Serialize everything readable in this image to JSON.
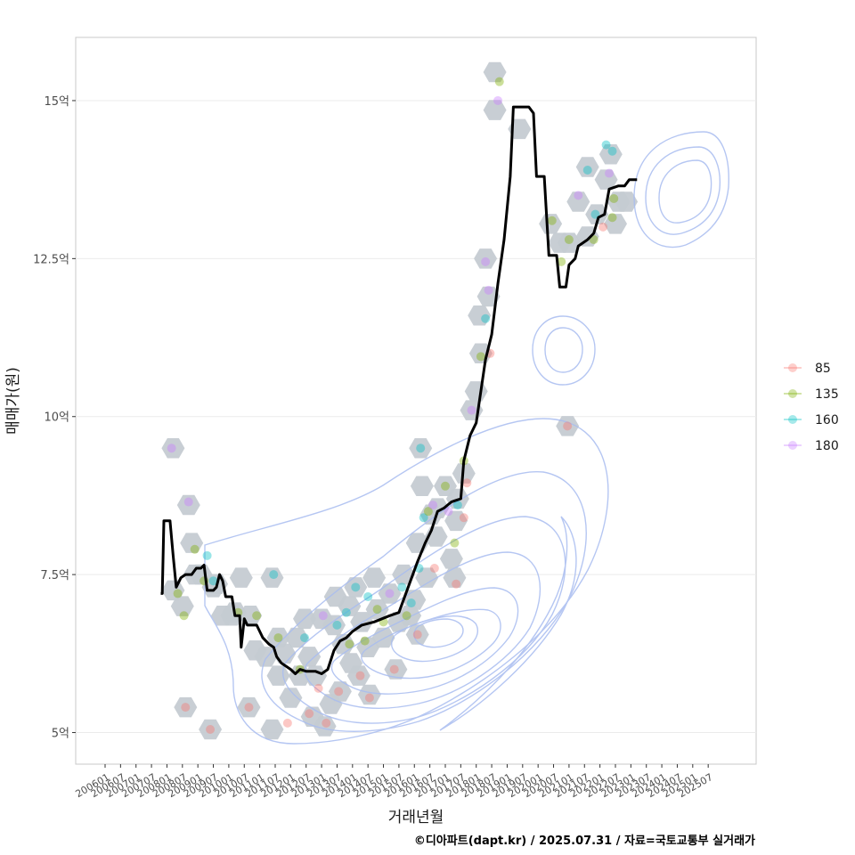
{
  "chart_data": {
    "type": "scatter",
    "xlabel": "거래년월",
    "ylabel": "매매가(원)",
    "ylim": [
      4.5,
      16
    ],
    "y_ticks": [
      {
        "value": 5,
        "label": "5억"
      },
      {
        "value": 7.5,
        "label": "7.5억"
      },
      {
        "value": 10,
        "label": "10억"
      },
      {
        "value": 12.5,
        "label": "12.5억"
      },
      {
        "value": 15,
        "label": "15억"
      }
    ],
    "x_range": [
      -0.95,
      21.05
    ],
    "x_ticks": [
      "200601",
      "200607",
      "200701",
      "200707",
      "200801",
      "200807",
      "200901",
      "200907",
      "201001",
      "201007",
      "201101",
      "201107",
      "201201",
      "201207",
      "201301",
      "201307",
      "201401",
      "201407",
      "201501",
      "201507",
      "201601",
      "201607",
      "201701",
      "201707",
      "201801",
      "201807",
      "201901",
      "201907",
      "202001",
      "202007",
      "202101",
      "202107",
      "202201",
      "202207",
      "202301",
      "202307",
      "202401",
      "202407",
      "202501",
      "202507"
    ],
    "grid": true,
    "legend_position": "right",
    "legend": [
      {
        "label": "85",
        "color": "#F8766D"
      },
      {
        "label": "135",
        "color": "#7CAE00"
      },
      {
        "label": "160",
        "color": "#00BFC4"
      },
      {
        "label": "180",
        "color": "#C77CFF"
      }
    ],
    "trend_line": {
      "color": "#000000",
      "points": [
        [
          1.8,
          7.2
        ],
        [
          1.85,
          7.2
        ],
        [
          1.9,
          8.35
        ],
        [
          2.0,
          8.35
        ],
        [
          2.1,
          8.35
        ],
        [
          2.2,
          7.8
        ],
        [
          2.3,
          7.3
        ],
        [
          2.45,
          7.45
        ],
        [
          2.6,
          7.5
        ],
        [
          2.8,
          7.5
        ],
        [
          2.95,
          7.6
        ],
        [
          3.1,
          7.6
        ],
        [
          3.2,
          7.65
        ],
        [
          3.3,
          7.25
        ],
        [
          3.5,
          7.25
        ],
        [
          3.6,
          7.3
        ],
        [
          3.7,
          7.5
        ],
        [
          3.8,
          7.4
        ],
        [
          3.9,
          7.15
        ],
        [
          4.1,
          7.15
        ],
        [
          4.2,
          6.85
        ],
        [
          4.35,
          6.85
        ],
        [
          4.4,
          6.35
        ],
        [
          4.5,
          6.8
        ],
        [
          4.6,
          6.7
        ],
        [
          4.9,
          6.7
        ],
        [
          5.1,
          6.5
        ],
        [
          5.3,
          6.4
        ],
        [
          5.45,
          6.35
        ],
        [
          5.55,
          6.2
        ],
        [
          5.7,
          6.1
        ],
        [
          5.85,
          6.05
        ],
        [
          6.0,
          6.0
        ],
        [
          6.15,
          5.93
        ],
        [
          6.3,
          6.0
        ],
        [
          6.5,
          5.97
        ],
        [
          6.8,
          5.97
        ],
        [
          7.0,
          5.93
        ],
        [
          7.2,
          6.0
        ],
        [
          7.4,
          6.3
        ],
        [
          7.6,
          6.45
        ],
        [
          7.8,
          6.5
        ],
        [
          8.0,
          6.6
        ],
        [
          8.3,
          6.7
        ],
        [
          8.7,
          6.75
        ],
        [
          9.2,
          6.85
        ],
        [
          9.5,
          6.9
        ],
        [
          9.8,
          7.3
        ],
        [
          10.1,
          7.7
        ],
        [
          10.35,
          8.0
        ],
        [
          10.55,
          8.2
        ],
        [
          10.75,
          8.5
        ],
        [
          10.95,
          8.55
        ],
        [
          11.2,
          8.65
        ],
        [
          11.5,
          8.7
        ],
        [
          11.6,
          9.3
        ],
        [
          11.8,
          9.7
        ],
        [
          12.0,
          9.9
        ],
        [
          12.3,
          10.9
        ],
        [
          12.5,
          11.3
        ],
        [
          12.7,
          12.1
        ],
        [
          12.9,
          12.8
        ],
        [
          13.1,
          13.8
        ],
        [
          13.2,
          14.9
        ],
        [
          13.5,
          14.9
        ],
        [
          13.7,
          14.9
        ],
        [
          13.85,
          14.8
        ],
        [
          13.95,
          13.8
        ],
        [
          14.2,
          13.8
        ],
        [
          14.35,
          12.55
        ],
        [
          14.6,
          12.55
        ],
        [
          14.7,
          12.05
        ],
        [
          14.9,
          12.05
        ],
        [
          15.0,
          12.4
        ],
        [
          15.2,
          12.5
        ],
        [
          15.3,
          12.7
        ],
        [
          15.6,
          12.8
        ],
        [
          15.8,
          12.9
        ],
        [
          15.95,
          13.15
        ],
        [
          16.15,
          13.2
        ],
        [
          16.3,
          13.6
        ],
        [
          16.6,
          13.65
        ],
        [
          16.8,
          13.65
        ],
        [
          16.95,
          13.75
        ],
        [
          17.2,
          13.75
        ]
      ]
    },
    "hexbins": [
      [
        2.2,
        9.5
      ],
      [
        2.2,
        7.25
      ],
      [
        2.5,
        7.0
      ],
      [
        2.6,
        5.4
      ],
      [
        2.7,
        8.6
      ],
      [
        2.8,
        8.0
      ],
      [
        2.9,
        7.5
      ],
      [
        3.1,
        7.5
      ],
      [
        3.4,
        5.05
      ],
      [
        3.5,
        7.3
      ],
      [
        3.6,
        7.35
      ],
      [
        3.8,
        6.85
      ],
      [
        4.1,
        6.85
      ],
      [
        4.2,
        6.9
      ],
      [
        4.4,
        7.45
      ],
      [
        4.65,
        5.4
      ],
      [
        4.7,
        6.85
      ],
      [
        4.85,
        6.3
      ],
      [
        5.2,
        6.2
      ],
      [
        5.4,
        7.45
      ],
      [
        5.4,
        5.05
      ],
      [
        5.6,
        6.5
      ],
      [
        5.6,
        5.9
      ],
      [
        5.8,
        6.25
      ],
      [
        6.0,
        5.55
      ],
      [
        6.2,
        6.5
      ],
      [
        6.3,
        5.9
      ],
      [
        6.45,
        6.8
      ],
      [
        6.6,
        6.2
      ],
      [
        6.7,
        5.25
      ],
      [
        6.8,
        5.9
      ],
      [
        7.0,
        6.8
      ],
      [
        7.1,
        5.1
      ],
      [
        7.3,
        5.45
      ],
      [
        7.4,
        6.7
      ],
      [
        7.45,
        7.15
      ],
      [
        7.6,
        5.65
      ],
      [
        7.7,
        6.4
      ],
      [
        7.9,
        7.0
      ],
      [
        7.95,
        6.1
      ],
      [
        8.1,
        7.3
      ],
      [
        8.2,
        5.9
      ],
      [
        8.3,
        6.75
      ],
      [
        8.5,
        6.35
      ],
      [
        8.55,
        5.6
      ],
      [
        8.7,
        7.45
      ],
      [
        8.8,
        6.95
      ],
      [
        9.0,
        6.5
      ],
      [
        9.2,
        7.2
      ],
      [
        9.4,
        6.0
      ],
      [
        9.5,
        6.75
      ],
      [
        9.65,
        7.5
      ],
      [
        9.85,
        6.85
      ],
      [
        10.0,
        7.1
      ],
      [
        10.1,
        6.55
      ],
      [
        10.1,
        8.0
      ],
      [
        10.2,
        9.5
      ],
      [
        10.25,
        8.9
      ],
      [
        10.4,
        7.45
      ],
      [
        10.55,
        8.45
      ],
      [
        10.7,
        8.1
      ],
      [
        10.75,
        8.55
      ],
      [
        11.0,
        8.9
      ],
      [
        11.2,
        7.75
      ],
      [
        11.3,
        7.45
      ],
      [
        11.35,
        8.35
      ],
      [
        11.4,
        8.7
      ],
      [
        11.6,
        9.1
      ],
      [
        11.85,
        10.1
      ],
      [
        12.0,
        10.4
      ],
      [
        12.1,
        11.6
      ],
      [
        12.15,
        11.0
      ],
      [
        12.3,
        12.5
      ],
      [
        12.4,
        11.9
      ],
      [
        12.6,
        15.45
      ],
      [
        12.6,
        14.85
      ],
      [
        13.4,
        14.55
      ],
      [
        14.4,
        13.05
      ],
      [
        14.7,
        12.75
      ],
      [
        14.95,
        9.85
      ],
      [
        15.0,
        12.75
      ],
      [
        15.3,
        13.4
      ],
      [
        15.6,
        13.95
      ],
      [
        15.6,
        12.85
      ],
      [
        15.9,
        13.2
      ],
      [
        16.2,
        13.75
      ],
      [
        16.35,
        14.15
      ],
      [
        16.5,
        13.05
      ],
      [
        16.6,
        13.4
      ],
      [
        16.85,
        13.4
      ]
    ],
    "points": [
      {
        "x": 2.15,
        "y": 9.5,
        "group": "180"
      },
      {
        "x": 2.35,
        "y": 7.2,
        "group": "135"
      },
      {
        "x": 2.55,
        "y": 6.85,
        "group": "135"
      },
      {
        "x": 2.6,
        "y": 5.4,
        "group": "85"
      },
      {
        "x": 2.7,
        "y": 8.65,
        "group": "180"
      },
      {
        "x": 2.9,
        "y": 7.9,
        "group": "135"
      },
      {
        "x": 3.2,
        "y": 7.4,
        "group": "135"
      },
      {
        "x": 3.3,
        "y": 7.8,
        "group": "160"
      },
      {
        "x": 3.4,
        "y": 5.05,
        "group": "85"
      },
      {
        "x": 3.5,
        "y": 7.4,
        "group": "160"
      },
      {
        "x": 4.3,
        "y": 6.9,
        "group": "135"
      },
      {
        "x": 4.65,
        "y": 5.4,
        "group": "85"
      },
      {
        "x": 4.9,
        "y": 6.85,
        "group": "135"
      },
      {
        "x": 5.45,
        "y": 7.5,
        "group": "160"
      },
      {
        "x": 5.6,
        "y": 6.5,
        "group": "135"
      },
      {
        "x": 5.9,
        "y": 5.15,
        "group": "85"
      },
      {
        "x": 6.3,
        "y": 6.0,
        "group": "135"
      },
      {
        "x": 6.45,
        "y": 6.5,
        "group": "160"
      },
      {
        "x": 6.6,
        "y": 5.3,
        "group": "85"
      },
      {
        "x": 6.9,
        "y": 5.7,
        "group": "85"
      },
      {
        "x": 7.05,
        "y": 6.85,
        "group": "180"
      },
      {
        "x": 7.15,
        "y": 5.15,
        "group": "85"
      },
      {
        "x": 7.5,
        "y": 6.7,
        "group": "160"
      },
      {
        "x": 7.55,
        "y": 5.65,
        "group": "85"
      },
      {
        "x": 7.8,
        "y": 6.9,
        "group": "160"
      },
      {
        "x": 7.9,
        "y": 6.4,
        "group": "135"
      },
      {
        "x": 8.1,
        "y": 7.3,
        "group": "160"
      },
      {
        "x": 8.25,
        "y": 5.9,
        "group": "85"
      },
      {
        "x": 8.4,
        "y": 6.45,
        "group": "135"
      },
      {
        "x": 8.55,
        "y": 5.55,
        "group": "85"
      },
      {
        "x": 8.5,
        "y": 7.15,
        "group": "160"
      },
      {
        "x": 8.8,
        "y": 6.95,
        "group": "135"
      },
      {
        "x": 9.0,
        "y": 6.75,
        "group": "135"
      },
      {
        "x": 9.2,
        "y": 7.2,
        "group": "180"
      },
      {
        "x": 9.35,
        "y": 6.0,
        "group": "85"
      },
      {
        "x": 9.6,
        "y": 7.3,
        "group": "160"
      },
      {
        "x": 9.75,
        "y": 6.85,
        "group": "135"
      },
      {
        "x": 9.9,
        "y": 7.05,
        "group": "160"
      },
      {
        "x": 10.1,
        "y": 6.55,
        "group": "85"
      },
      {
        "x": 10.15,
        "y": 7.6,
        "group": "160"
      },
      {
        "x": 10.2,
        "y": 9.5,
        "group": "160"
      },
      {
        "x": 10.3,
        "y": 8.4,
        "group": "160"
      },
      {
        "x": 10.45,
        "y": 8.5,
        "group": "135"
      },
      {
        "x": 10.6,
        "y": 8.6,
        "group": "180"
      },
      {
        "x": 10.65,
        "y": 7.6,
        "group": "85"
      },
      {
        "x": 11.0,
        "y": 8.9,
        "group": "135"
      },
      {
        "x": 11.1,
        "y": 8.5,
        "group": "180"
      },
      {
        "x": 11.3,
        "y": 8.0,
        "group": "135"
      },
      {
        "x": 11.35,
        "y": 7.35,
        "group": "85"
      },
      {
        "x": 11.4,
        "y": 8.6,
        "group": "160"
      },
      {
        "x": 11.6,
        "y": 9.3,
        "group": "135"
      },
      {
        "x": 11.6,
        "y": 8.4,
        "group": "85"
      },
      {
        "x": 11.7,
        "y": 8.95,
        "group": "85"
      },
      {
        "x": 11.85,
        "y": 10.1,
        "group": "180"
      },
      {
        "x": 12.15,
        "y": 10.95,
        "group": "135"
      },
      {
        "x": 12.3,
        "y": 11.55,
        "group": "160"
      },
      {
        "x": 12.3,
        "y": 12.45,
        "group": "180"
      },
      {
        "x": 12.4,
        "y": 12.0,
        "group": "180"
      },
      {
        "x": 12.45,
        "y": 11.0,
        "group": "85"
      },
      {
        "x": 12.75,
        "y": 15.3,
        "group": "135"
      },
      {
        "x": 12.7,
        "y": 15.0,
        "group": "180"
      },
      {
        "x": 14.45,
        "y": 13.1,
        "group": "135"
      },
      {
        "x": 14.75,
        "y": 12.45,
        "group": "135"
      },
      {
        "x": 14.95,
        "y": 9.85,
        "group": "85"
      },
      {
        "x": 15.0,
        "y": 12.8,
        "group": "135"
      },
      {
        "x": 15.3,
        "y": 13.5,
        "group": "180"
      },
      {
        "x": 15.6,
        "y": 13.9,
        "group": "160"
      },
      {
        "x": 15.8,
        "y": 12.8,
        "group": "135"
      },
      {
        "x": 15.85,
        "y": 13.2,
        "group": "160"
      },
      {
        "x": 16.2,
        "y": 14.3,
        "group": "160"
      },
      {
        "x": 16.3,
        "y": 13.85,
        "group": "180"
      },
      {
        "x": 16.4,
        "y": 14.2,
        "group": "160"
      },
      {
        "x": 16.4,
        "y": 13.15,
        "group": "135"
      },
      {
        "x": 16.45,
        "y": 13.45,
        "group": "135"
      },
      {
        "x": 16.1,
        "y": 13.0,
        "group": "85"
      }
    ]
  },
  "footer": {
    "credit": "©디아파트(dapt.kr) / 2025.07.31 / 자료=국토교통부 실거래가"
  }
}
